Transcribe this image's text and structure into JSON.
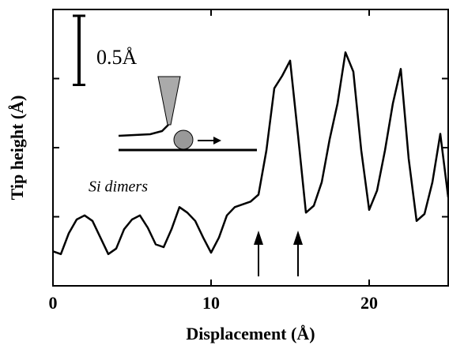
{
  "chart_data": {
    "type": "line",
    "xlabel": "Displacement (Å)",
    "ylabel": "Tip height (Å)",
    "annotation": "Si dimers",
    "scale_bar": {
      "value": 0.5,
      "label": "0.5Å"
    },
    "arrows_x": [
      13,
      15.5
    ],
    "xlim": [
      0,
      25
    ],
    "xticks": [
      0,
      10,
      20
    ],
    "ylim": [
      0,
      2
    ],
    "yticks": [
      0.5,
      1,
      1.5
    ],
    "color": "#000000",
    "x": [
      0,
      0.5,
      1,
      1.5,
      2,
      2.5,
      3,
      3.5,
      4,
      4.5,
      5,
      5.5,
      6,
      6.5,
      7,
      7.5,
      8,
      8.5,
      9,
      9.5,
      10,
      10.5,
      11,
      11.5,
      12,
      12.5,
      13,
      13.5,
      14,
      14.5,
      15,
      15.5,
      16,
      16.5,
      17,
      17.5,
      18,
      18.5,
      19,
      19.5,
      20,
      20.5,
      21,
      21.5,
      22,
      22.5,
      23,
      23.5,
      24,
      24.5,
      25
    ],
    "values": [
      0.25,
      0.23,
      0.38,
      0.48,
      0.51,
      0.47,
      0.35,
      0.23,
      0.27,
      0.41,
      0.48,
      0.51,
      0.42,
      0.3,
      0.28,
      0.41,
      0.57,
      0.53,
      0.47,
      0.35,
      0.24,
      0.35,
      0.51,
      0.57,
      0.59,
      0.61,
      0.66,
      0.98,
      1.43,
      1.52,
      1.63,
      1.09,
      0.53,
      0.58,
      0.75,
      1.06,
      1.32,
      1.69,
      1.55,
      0.98,
      0.55,
      0.69,
      0.98,
      1.32,
      1.57,
      0.92,
      0.47,
      0.52,
      0.75,
      1.1,
      0.64
    ]
  }
}
